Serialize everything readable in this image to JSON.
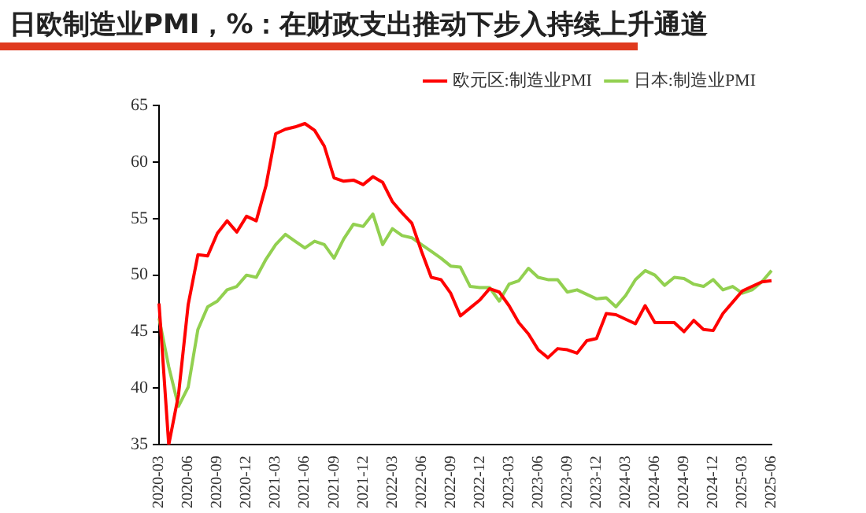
{
  "chart_data": {
    "type": "line",
    "title": "日欧制造业PMI，%：在财政支出推动下步入持续上升通道",
    "categories": [
      "2020-03",
      null,
      null,
      "2020-06",
      null,
      null,
      "2020-09",
      null,
      null,
      "2020-12",
      null,
      null,
      "2021-03",
      null,
      null,
      "2021-06",
      null,
      null,
      "2021-09",
      null,
      null,
      "2021-12",
      null,
      null,
      "2022-03",
      null,
      null,
      "2022-06",
      null,
      null,
      "2022-09",
      null,
      null,
      "2022-12",
      null,
      null,
      "2023-03",
      null,
      null,
      "2023-06",
      null,
      null,
      "2023-09",
      null,
      null,
      "2023-12",
      null,
      null,
      "2024-03",
      null,
      null,
      "2024-06",
      null,
      null,
      "2024-09",
      null,
      null,
      "2024-12",
      null,
      null,
      "2025-03",
      null,
      null,
      "2025-06"
    ],
    "series": [
      {
        "name": "欧元区:制造业PMI",
        "color": "#ff0000",
        "values": [
          47.5,
          35,
          39.4,
          47.4,
          51.8,
          51.7,
          53.7,
          54.8,
          53.8,
          55.2,
          54.8,
          57.9,
          62.5,
          62.9,
          63.1,
          63.4,
          62.8,
          61.4,
          58.6,
          58.3,
          58.4,
          58.0,
          58.7,
          58.2,
          56.5,
          55.5,
          54.6,
          52.1,
          49.8,
          49.6,
          48.4,
          46.4,
          47.1,
          47.8,
          48.8,
          48.5,
          47.3,
          45.8,
          44.8,
          43.4,
          42.7,
          43.5,
          43.4,
          43.1,
          44.2,
          44.4,
          46.6,
          46.5,
          46.1,
          45.7,
          47.3,
          45.8,
          45.8,
          45.8,
          45.0,
          46.0,
          45.2,
          45.1,
          46.6,
          47.6,
          48.6,
          49.0,
          49.4,
          49.5
        ]
      },
      {
        "name": "日本:制造业PMI",
        "color": "#92d050",
        "values": [
          46.2,
          41.9,
          38.4,
          40.1,
          45.2,
          47.2,
          47.7,
          48.7,
          49.0,
          50.0,
          49.8,
          51.4,
          52.7,
          53.6,
          53.0,
          52.4,
          53.0,
          52.7,
          51.5,
          53.2,
          54.5,
          54.3,
          55.4,
          52.7,
          54.1,
          53.5,
          53.3,
          52.7,
          52.1,
          51.5,
          50.8,
          50.7,
          49.0,
          48.9,
          48.9,
          47.7,
          49.2,
          49.5,
          50.6,
          49.8,
          49.6,
          49.6,
          48.5,
          48.7,
          48.3,
          47.9,
          48.0,
          47.2,
          48.2,
          49.6,
          50.4,
          50.0,
          49.1,
          49.8,
          49.7,
          49.2,
          49.0,
          49.6,
          48.7,
          49.0,
          48.4,
          48.7,
          49.4,
          50.4
        ]
      }
    ],
    "ylim": [
      35,
      65
    ],
    "yticks": [
      35,
      40,
      45,
      50,
      55,
      60,
      65
    ],
    "legend": "top right"
  }
}
